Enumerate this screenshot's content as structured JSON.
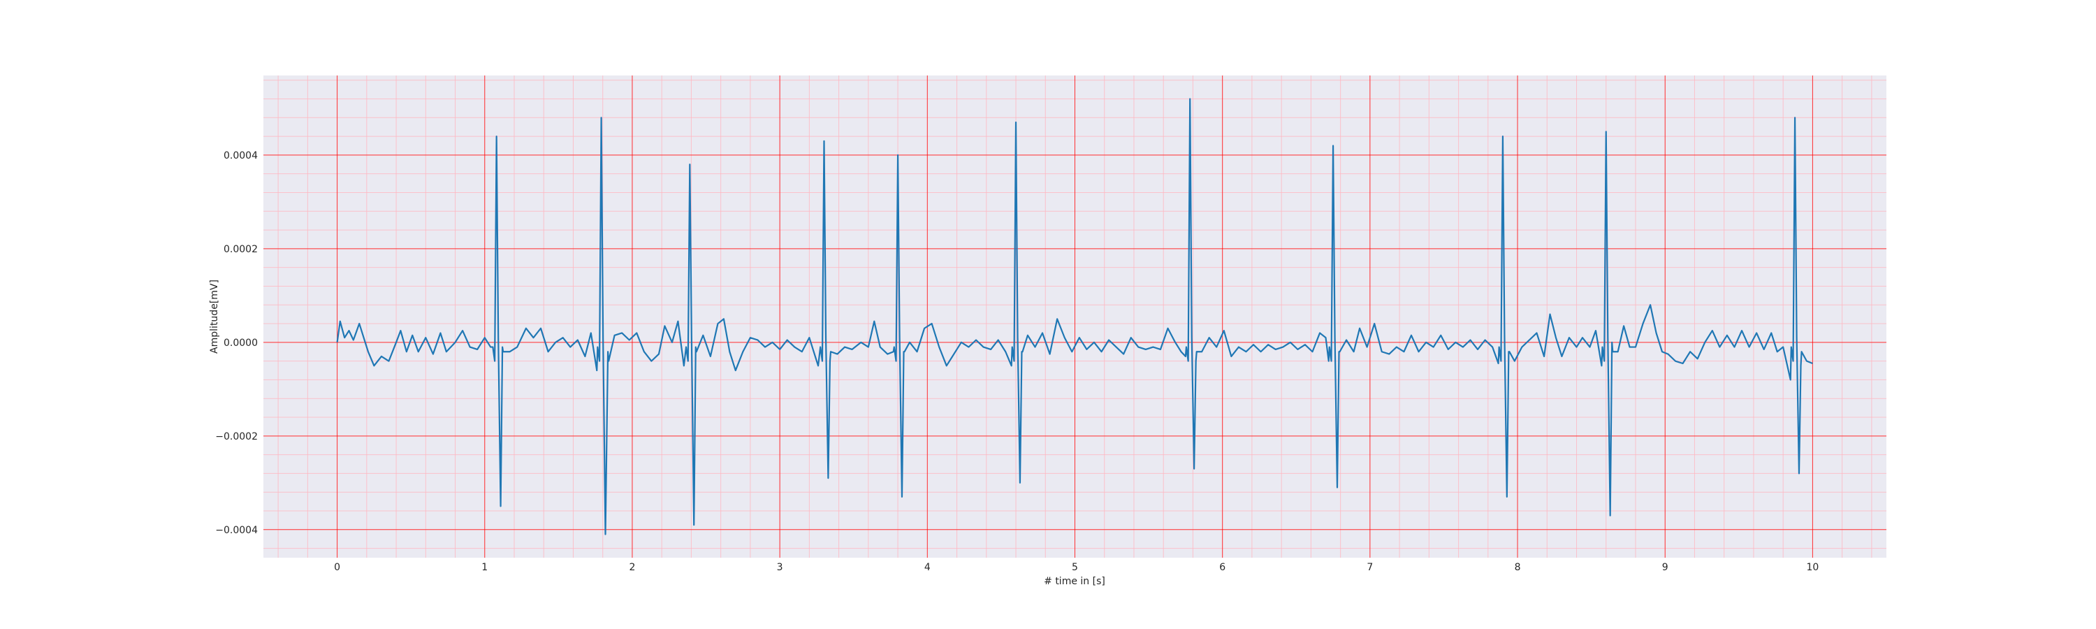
{
  "chart_data": {
    "type": "line",
    "title": "",
    "xlabel": "# time in [s]",
    "ylabel": "Amplitude[mV]",
    "xlim": [
      -0.5,
      10.5
    ],
    "ylim": [
      -0.00046,
      0.00057
    ],
    "x_ticks": [
      0,
      1,
      2,
      3,
      4,
      5,
      6,
      7,
      8,
      9,
      10
    ],
    "x_tick_labels": [
      "0",
      "1",
      "2",
      "3",
      "4",
      "5",
      "6",
      "7",
      "8",
      "9",
      "10"
    ],
    "y_ticks": [
      -0.0004,
      -0.0002,
      0.0,
      0.0002,
      0.0004
    ],
    "y_tick_labels": [
      "−0.0004",
      "−0.0002",
      "0.0000",
      "0.0002",
      "0.0004"
    ],
    "grid": true,
    "minor_grid": true,
    "background": "#eaeaf2",
    "major_grid_color": "#ff0000",
    "minor_grid_color": "#ffb6c1",
    "series_color": "#1f77b4",
    "sampling_interval_s": 0.01,
    "beats": [
      {
        "t": 1.08,
        "r": 0.00044,
        "s": -0.00035
      },
      {
        "t": 1.79,
        "r": 0.00048,
        "s": -0.00041
      },
      {
        "t": 2.39,
        "r": 0.00038,
        "s": -0.00039
      },
      {
        "t": 3.3,
        "r": 0.00043,
        "s": -0.00029
      },
      {
        "t": 3.8,
        "r": 0.0004,
        "s": -0.00033
      },
      {
        "t": 4.6,
        "r": 0.00047,
        "s": -0.0003
      },
      {
        "t": 5.78,
        "r": 0.00052,
        "s": -0.00027
      },
      {
        "t": 6.75,
        "r": 0.00042,
        "s": -0.00031
      },
      {
        "t": 7.9,
        "r": 0.00044,
        "s": -0.00033
      },
      {
        "t": 8.6,
        "r": 0.00045,
        "s": -0.00037
      },
      {
        "t": 9.88,
        "r": 0.00048,
        "s": -0.00028
      }
    ],
    "baseline_points": [
      [
        0.0,
        0.0
      ],
      [
        0.02,
        4.5e-05
      ],
      [
        0.05,
        1e-05
      ],
      [
        0.08,
        2.5e-05
      ],
      [
        0.11,
        5e-06
      ],
      [
        0.15,
        4e-05
      ],
      [
        0.18,
        1e-05
      ],
      [
        0.21,
        -2e-05
      ],
      [
        0.25,
        -5e-05
      ],
      [
        0.3,
        -3e-05
      ],
      [
        0.35,
        -4e-05
      ],
      [
        0.4,
        0.0
      ],
      [
        0.43,
        2.5e-05
      ],
      [
        0.47,
        -2e-05
      ],
      [
        0.51,
        1.5e-05
      ],
      [
        0.55,
        -2e-05
      ],
      [
        0.6,
        1e-05
      ],
      [
        0.65,
        -2.5e-05
      ],
      [
        0.7,
        2e-05
      ],
      [
        0.74,
        -2e-05
      ],
      [
        0.8,
        0.0
      ],
      [
        0.85,
        2.5e-05
      ],
      [
        0.9,
        -1e-05
      ],
      [
        0.95,
        -1.5e-05
      ],
      [
        1.0,
        1e-05
      ],
      [
        1.04,
        -1e-05
      ],
      [
        1.12,
        -1e-05
      ],
      [
        1.17,
        -2e-05
      ],
      [
        1.22,
        -1e-05
      ],
      [
        1.28,
        3e-05
      ],
      [
        1.33,
        1e-05
      ],
      [
        1.38,
        3e-05
      ],
      [
        1.43,
        -2e-05
      ],
      [
        1.48,
        0.0
      ],
      [
        1.53,
        1e-05
      ],
      [
        1.58,
        -1e-05
      ],
      [
        1.63,
        5e-06
      ],
      [
        1.68,
        -3e-05
      ],
      [
        1.72,
        2e-05
      ],
      [
        1.76,
        -6e-05
      ],
      [
        1.84,
        -4e-05
      ],
      [
        1.88,
        1.5e-05
      ],
      [
        1.93,
        2e-05
      ],
      [
        1.98,
        5e-06
      ],
      [
        2.03,
        2e-05
      ],
      [
        2.08,
        -2e-05
      ],
      [
        2.13,
        -4e-05
      ],
      [
        2.18,
        -2.5e-05
      ],
      [
        2.22,
        3.5e-05
      ],
      [
        2.27,
        0.0
      ],
      [
        2.31,
        4.5e-05
      ],
      [
        2.35,
        -5e-05
      ],
      [
        2.43,
        -1e-05
      ],
      [
        2.48,
        1.5e-05
      ],
      [
        2.53,
        -3e-05
      ],
      [
        2.58,
        4e-05
      ],
      [
        2.62,
        5e-05
      ],
      [
        2.66,
        -2e-05
      ],
      [
        2.7,
        -6e-05
      ],
      [
        2.75,
        -2e-05
      ],
      [
        2.8,
        1e-05
      ],
      [
        2.85,
        5e-06
      ],
      [
        2.9,
        -1e-05
      ],
      [
        2.95,
        0.0
      ],
      [
        3.0,
        -1.5e-05
      ],
      [
        3.05,
        5e-06
      ],
      [
        3.1,
        -1e-05
      ],
      [
        3.15,
        -2e-05
      ],
      [
        3.2,
        1e-05
      ],
      [
        3.26,
        -5e-05
      ],
      [
        3.34,
        -4e-05
      ],
      [
        3.39,
        -2.5e-05
      ],
      [
        3.44,
        -1e-05
      ],
      [
        3.49,
        -1.5e-05
      ],
      [
        3.55,
        0.0
      ],
      [
        3.6,
        -1e-05
      ],
      [
        3.64,
        4.5e-05
      ],
      [
        3.68,
        -1e-05
      ],
      [
        3.73,
        -2.5e-05
      ],
      [
        3.77,
        -2e-05
      ],
      [
        3.84,
        -2e-05
      ],
      [
        3.88,
        0.0
      ],
      [
        3.93,
        -2e-05
      ],
      [
        3.98,
        3e-05
      ],
      [
        4.03,
        4e-05
      ],
      [
        4.08,
        -1e-05
      ],
      [
        4.13,
        -5e-05
      ],
      [
        4.18,
        -2.5e-05
      ],
      [
        4.23,
        0.0
      ],
      [
        4.28,
        -1e-05
      ],
      [
        4.33,
        5e-06
      ],
      [
        4.38,
        -1e-05
      ],
      [
        4.43,
        -1.5e-05
      ],
      [
        4.48,
        5e-06
      ],
      [
        4.53,
        -2e-05
      ],
      [
        4.57,
        -5e-05
      ],
      [
        4.64,
        -2e-05
      ],
      [
        4.68,
        1.5e-05
      ],
      [
        4.73,
        -1e-05
      ],
      [
        4.78,
        2e-05
      ],
      [
        4.83,
        -2.5e-05
      ],
      [
        4.88,
        5e-05
      ],
      [
        4.93,
        1e-05
      ],
      [
        4.98,
        -2e-05
      ],
      [
        5.03,
        1e-05
      ],
      [
        5.08,
        -1.5e-05
      ],
      [
        5.13,
        0.0
      ],
      [
        5.18,
        -2e-05
      ],
      [
        5.23,
        5e-06
      ],
      [
        5.28,
        -1e-05
      ],
      [
        5.33,
        -2.5e-05
      ],
      [
        5.38,
        1e-05
      ],
      [
        5.43,
        -1e-05
      ],
      [
        5.48,
        -1.5e-05
      ],
      [
        5.53,
        -1e-05
      ],
      [
        5.58,
        -1.5e-05
      ],
      [
        5.63,
        3e-05
      ],
      [
        5.68,
        0.0
      ],
      [
        5.72,
        -2e-05
      ],
      [
        5.75,
        -3e-05
      ],
      [
        5.82,
        -4e-05
      ],
      [
        5.86,
        -2e-05
      ],
      [
        5.91,
        1e-05
      ],
      [
        5.96,
        -1e-05
      ],
      [
        6.01,
        2.5e-05
      ],
      [
        6.06,
        -3e-05
      ],
      [
        6.11,
        -1e-05
      ],
      [
        6.16,
        -2e-05
      ],
      [
        6.21,
        -5e-06
      ],
      [
        6.26,
        -2e-05
      ],
      [
        6.31,
        -5e-06
      ],
      [
        6.36,
        -1.5e-05
      ],
      [
        6.41,
        -1e-05
      ],
      [
        6.46,
        0.0
      ],
      [
        6.51,
        -1.5e-05
      ],
      [
        6.56,
        -5e-06
      ],
      [
        6.61,
        -2e-05
      ],
      [
        6.66,
        2e-05
      ],
      [
        6.7,
        1e-05
      ],
      [
        6.72,
        -4e-05
      ],
      [
        6.79,
        -2e-05
      ],
      [
        6.84,
        5e-06
      ],
      [
        6.89,
        -2e-05
      ],
      [
        6.93,
        3e-05
      ],
      [
        6.98,
        -1e-05
      ],
      [
        7.03,
        4e-05
      ],
      [
        7.08,
        -2e-05
      ],
      [
        7.13,
        -2.5e-05
      ],
      [
        7.18,
        -1e-05
      ],
      [
        7.23,
        -2e-05
      ],
      [
        7.28,
        1.5e-05
      ],
      [
        7.33,
        -2e-05
      ],
      [
        7.38,
        0.0
      ],
      [
        7.43,
        -1e-05
      ],
      [
        7.48,
        1.5e-05
      ],
      [
        7.53,
        -1.5e-05
      ],
      [
        7.58,
        0.0
      ],
      [
        7.63,
        -1e-05
      ],
      [
        7.68,
        5e-06
      ],
      [
        7.73,
        -1.5e-05
      ],
      [
        7.78,
        5e-06
      ],
      [
        7.83,
        -1e-05
      ],
      [
        7.87,
        -4.5e-05
      ],
      [
        7.94,
        -2e-05
      ],
      [
        7.98,
        -4e-05
      ],
      [
        8.03,
        -1e-05
      ],
      [
        8.08,
        5e-06
      ],
      [
        8.13,
        2e-05
      ],
      [
        8.18,
        -3e-05
      ],
      [
        8.22,
        6e-05
      ],
      [
        8.26,
        1e-05
      ],
      [
        8.3,
        -3e-05
      ],
      [
        8.35,
        1e-05
      ],
      [
        8.4,
        -1e-05
      ],
      [
        8.44,
        1e-05
      ],
      [
        8.49,
        -1e-05
      ],
      [
        8.53,
        2.5e-05
      ],
      [
        8.57,
        -5e-05
      ],
      [
        8.64,
        0.0
      ],
      [
        8.68,
        -2e-05
      ],
      [
        8.72,
        3.5e-05
      ],
      [
        8.76,
        -1e-05
      ],
      [
        8.8,
        -1e-05
      ],
      [
        8.85,
        4e-05
      ],
      [
        8.9,
        8e-05
      ],
      [
        8.94,
        2e-05
      ],
      [
        8.98,
        -2e-05
      ],
      [
        9.02,
        -2.5e-05
      ],
      [
        9.07,
        -4e-05
      ],
      [
        9.12,
        -4.5e-05
      ],
      [
        9.17,
        -2e-05
      ],
      [
        9.22,
        -3.5e-05
      ],
      [
        9.27,
        0.0
      ],
      [
        9.32,
        2.5e-05
      ],
      [
        9.37,
        -1e-05
      ],
      [
        9.42,
        1.5e-05
      ],
      [
        9.47,
        -1e-05
      ],
      [
        9.52,
        2.5e-05
      ],
      [
        9.57,
        -1e-05
      ],
      [
        9.62,
        2e-05
      ],
      [
        9.67,
        -1.5e-05
      ],
      [
        9.72,
        2e-05
      ],
      [
        9.76,
        -2e-05
      ],
      [
        9.8,
        -1e-05
      ],
      [
        9.85,
        -8e-05
      ],
      [
        9.92,
        -5e-05
      ],
      [
        9.96,
        -4e-05
      ],
      [
        10.0,
        -4.5e-05
      ]
    ]
  }
}
